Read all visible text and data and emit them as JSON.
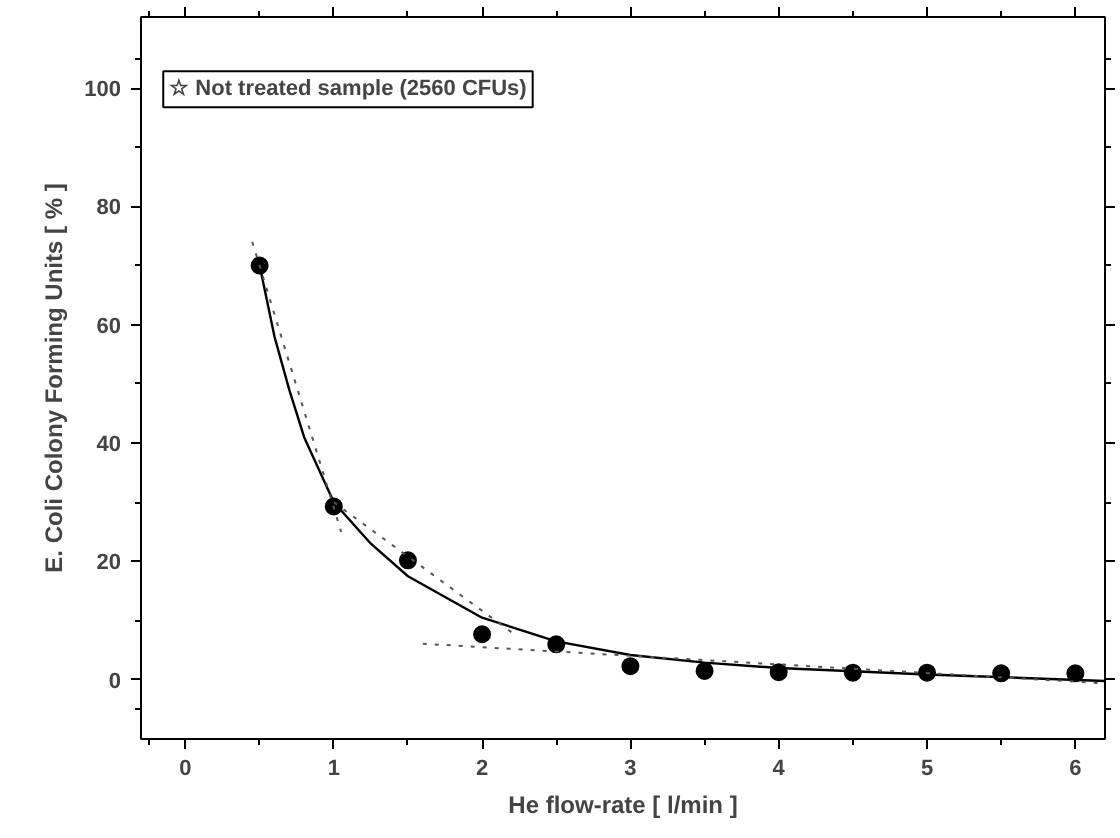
{
  "chart_data": {
    "type": "scatter",
    "xlabel": "He flow-rate [ l/min ]",
    "ylabel": "E. Coli Colony Forming Units [ % ]",
    "xlim": [
      -0.3,
      6.2
    ],
    "ylim": [
      -10,
      112
    ],
    "xticks": [
      0,
      1,
      2,
      3,
      4,
      5,
      6
    ],
    "yticks": [
      0,
      20,
      40,
      60,
      80,
      100
    ],
    "marker": "circle",
    "grid": false,
    "annotations": [
      "☆ Not treated sample (2560 CFUs)"
    ],
    "series": [
      {
        "color": "#000000",
        "x": [
          0.5,
          1,
          1.5,
          2,
          2.5,
          3,
          3.5,
          4,
          4.5,
          5,
          5.5,
          6
        ],
        "values": [
          70,
          29.3,
          20.2,
          7.7,
          6,
          2.3,
          1.5,
          1.3,
          1.2,
          1.2,
          1.1,
          1.1
        ]
      },
      {
        "type": "line",
        "color": "#000000",
        "line_style": "solid",
        "marker": "none",
        "x": [
          0.5,
          0.6,
          0.7,
          0.8,
          1.0,
          1.25,
          1.5,
          2.0,
          2.5,
          3.0,
          3.5,
          4.0,
          5.0,
          6.2
        ],
        "values": [
          70,
          58,
          49,
          41,
          30,
          23,
          17.5,
          10.5,
          6.5,
          4.2,
          2.9,
          2,
          0.9,
          -0.2
        ]
      },
      {
        "type": "line",
        "color": "#555555",
        "line_style": "dotted",
        "marker": "none",
        "x": [
          0.45,
          1.05
        ],
        "values": [
          74,
          25
        ]
      },
      {
        "type": "line",
        "color": "#555555",
        "line_style": "dotted",
        "marker": "none",
        "x": [
          1.0,
          2.2
        ],
        "values": [
          30,
          8
        ]
      },
      {
        "type": "line",
        "color": "#555555",
        "line_style": "dotted",
        "marker": "none",
        "x": [
          1.6,
          6.2
        ],
        "values": [
          6.1,
          -0.6
        ]
      }
    ]
  }
}
